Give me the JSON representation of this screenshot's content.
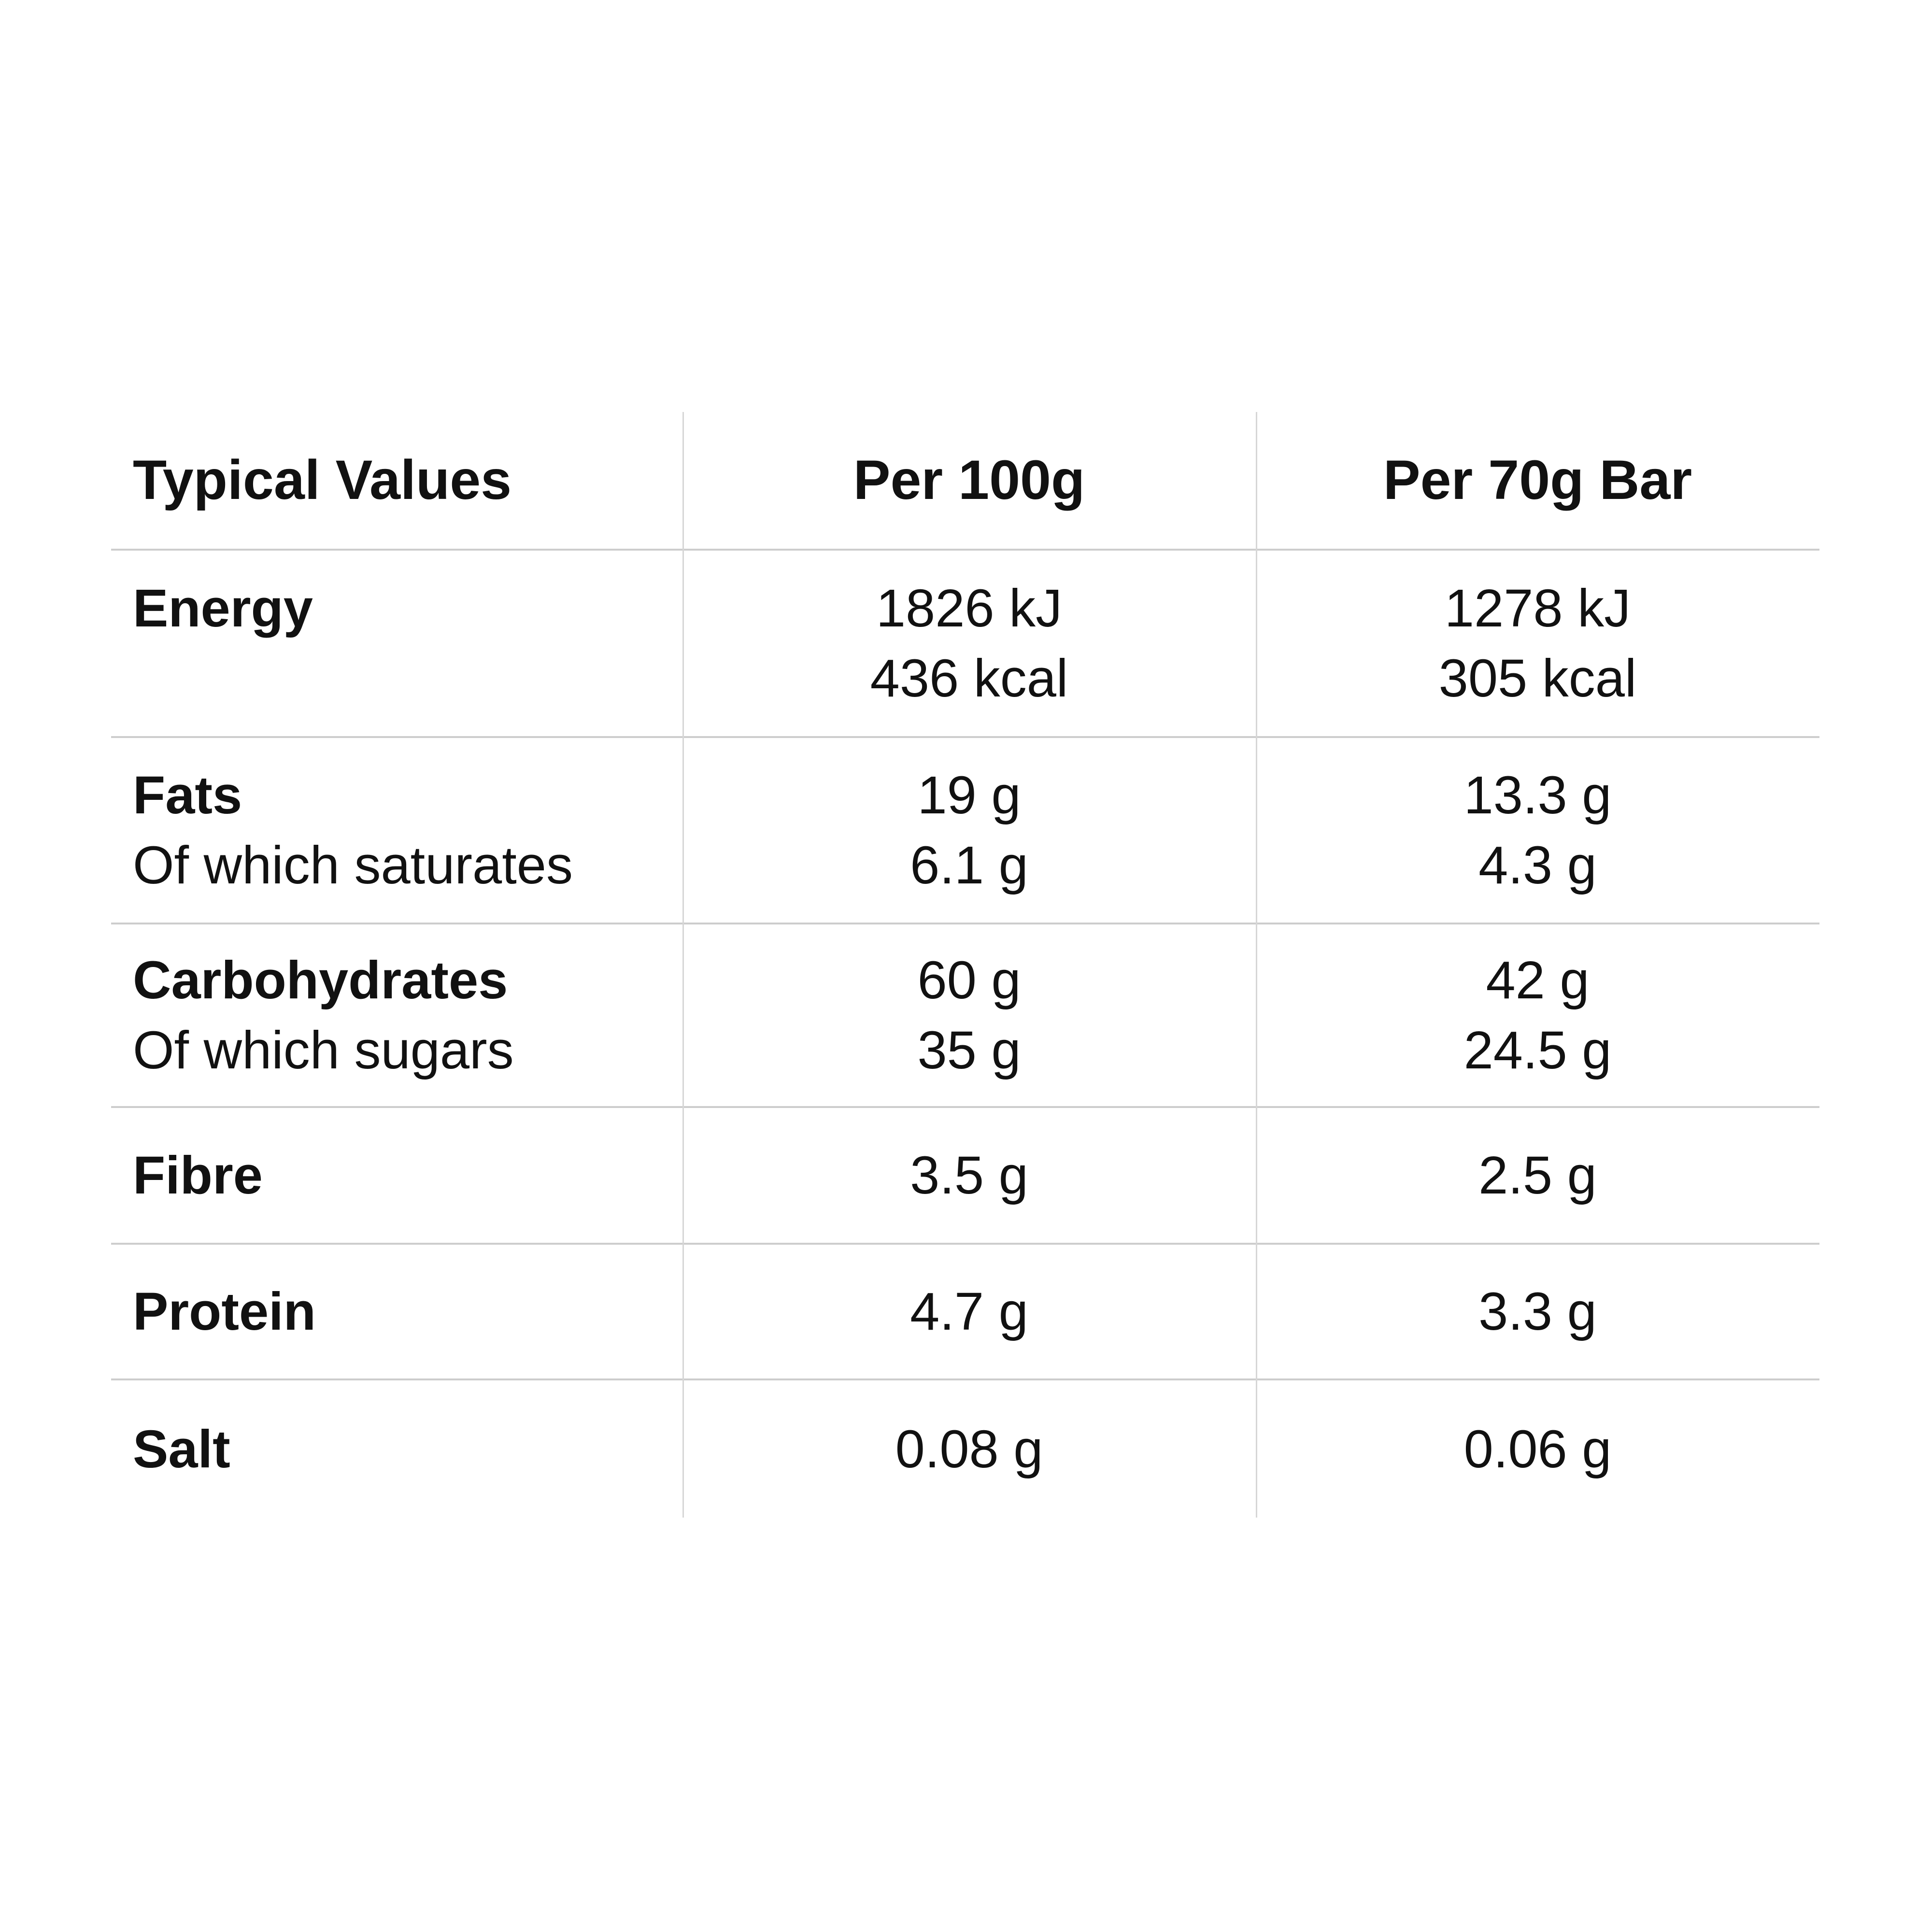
{
  "page": {
    "background_color": "#ffffff",
    "text_color": "#111111",
    "line_color": "#cdcdcd"
  },
  "table": {
    "header": {
      "col0": "Typical Values",
      "col1": "Per 100g",
      "col2": "Per 70g Bar"
    },
    "rows": [
      {
        "name": "energy",
        "label": "Energy",
        "sub_label": "",
        "per_100g": [
          "1826 kJ",
          "436 kcal"
        ],
        "per_70g_bar": [
          "1278 kJ",
          "305 kcal"
        ]
      },
      {
        "name": "fats",
        "label": "Fats",
        "sub_label": "Of which saturates",
        "per_100g": [
          "19 g",
          "6.1 g"
        ],
        "per_70g_bar": [
          "13.3 g",
          "4.3 g"
        ]
      },
      {
        "name": "carbohydrates",
        "label": "Carbohydrates",
        "sub_label": "Of which sugars",
        "per_100g": [
          "60 g",
          "35 g"
        ],
        "per_70g_bar": [
          "42 g",
          "24.5 g"
        ]
      },
      {
        "name": "fibre",
        "label": "Fibre",
        "per_100g": [
          "3.5 g"
        ],
        "per_70g_bar": [
          "2.5 g"
        ]
      },
      {
        "name": "protein",
        "label": "Protein",
        "per_100g": [
          "4.7 g"
        ],
        "per_70g_bar": [
          "3.3 g"
        ]
      },
      {
        "name": "salt",
        "label": "Salt",
        "per_100g": [
          "0.08 g"
        ],
        "per_70g_bar": [
          "0.06 g"
        ]
      }
    ]
  }
}
